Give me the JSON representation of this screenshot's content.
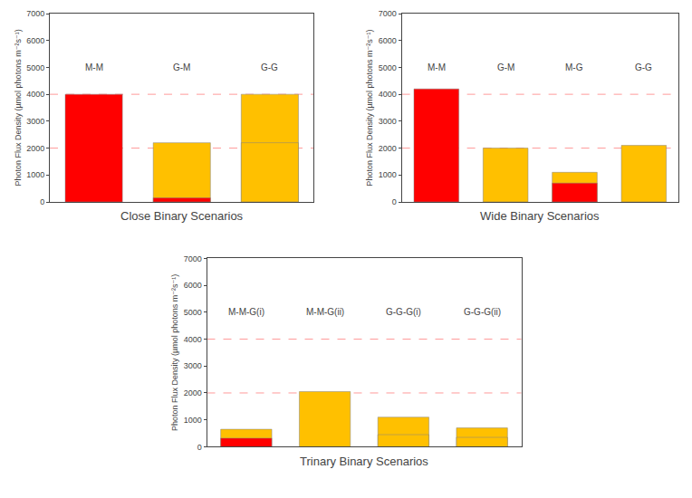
{
  "chart_data": [
    {
      "type": "bar",
      "title": "Close Binary Scenarios",
      "categories": [
        "M-M",
        "G-M",
        "G-G"
      ],
      "series": [
        {
          "values": [
            4000,
            2200,
            4000
          ],
          "colors": [
            "#FF0000",
            "#FFC000",
            "#FFC000"
          ]
        },
        {
          "values": [
            null,
            150,
            2200
          ],
          "colors": [
            null,
            "#FF0000",
            "#FFC000"
          ]
        }
      ],
      "hlines": [
        {
          "value": 4000,
          "color": "#FF9999"
        },
        {
          "value": 2000,
          "color": "#FF9999"
        }
      ],
      "ylabel": "Photon Flux Density (µmol photons m⁻²s⁻¹)",
      "ylim": [
        0,
        7000
      ],
      "yticks": [
        0,
        1000,
        2000,
        3000,
        4000,
        5000,
        6000,
        7000
      ],
      "grid": false,
      "tick_labels": "y"
    },
    {
      "type": "bar",
      "title": "Wide Binary Scenarios",
      "categories": [
        "M-M",
        "G-M",
        "M-G",
        "G-G"
      ],
      "series": [
        {
          "values": [
            4200,
            2000,
            1100,
            2100
          ],
          "colors": [
            "#FF0000",
            "#FFC000",
            "#FFC000",
            "#FFC000"
          ]
        },
        {
          "values": [
            null,
            null,
            700,
            null
          ],
          "colors": [
            null,
            null,
            "#FF0000",
            null
          ]
        }
      ],
      "hlines": [
        {
          "value": 4000,
          "color": "#FF9999"
        },
        {
          "value": 2000,
          "color": "#FF9999"
        }
      ],
      "ylabel": "Photon Flux Density (µmol photons m⁻²s⁻¹)",
      "ylim": [
        0,
        7000
      ],
      "yticks": [
        0,
        1000,
        2000,
        3000,
        4000,
        5000,
        6000,
        7000
      ],
      "grid": false,
      "tick_labels": "y"
    },
    {
      "type": "bar",
      "title": "Trinary Binary Scenarios",
      "categories": [
        "M-M-G(i)",
        "M-M-G(ii)",
        "G-G-G(i)",
        "G-G-G(ii)"
      ],
      "series": [
        {
          "values": [
            650,
            2050,
            1100,
            700
          ],
          "colors": [
            "#FFC000",
            "#FFC000",
            "#FFC000",
            "#FFC000"
          ]
        },
        {
          "values": [
            320,
            null,
            450,
            350
          ],
          "colors": [
            "#FF0000",
            null,
            "#FFC000",
            "#FFC000"
          ]
        }
      ],
      "hlines": [
        {
          "value": 4000,
          "color": "#FF9999"
        },
        {
          "value": 2000,
          "color": "#FF9999"
        }
      ],
      "ylabel": "Photon Flux Density (µmol photons m⁻²s⁻¹)",
      "ylim": [
        0,
        7000
      ],
      "yticks": [
        0,
        1000,
        2000,
        3000,
        4000,
        5000,
        6000,
        7000
      ],
      "grid": false,
      "tick_labels": "y"
    }
  ]
}
